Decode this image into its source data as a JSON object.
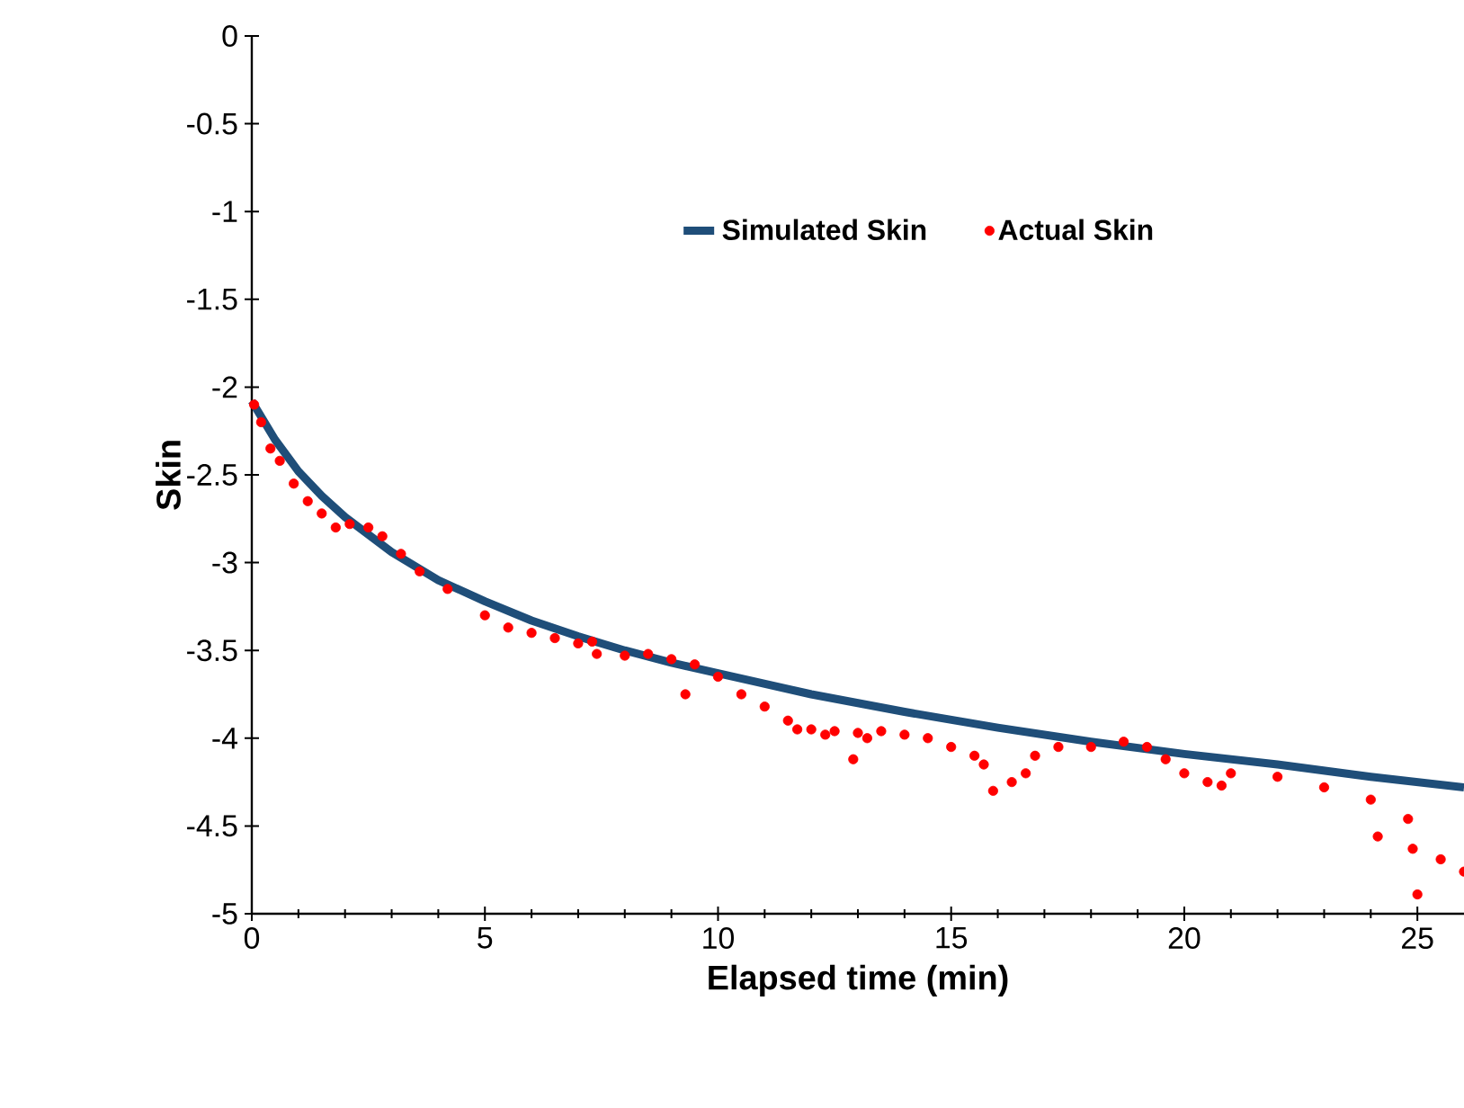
{
  "chart_data": {
    "type": "line",
    "xlabel": "Elapsed time (min)",
    "ylabel": "Skin",
    "xlim": [
      0,
      26
    ],
    "ylim": [
      -5,
      0
    ],
    "xticks": [
      0,
      5,
      10,
      15,
      20,
      25
    ],
    "yticks": [
      -5,
      -4.5,
      -4,
      -3.5,
      -3,
      -2.5,
      -2,
      -1.5,
      -1,
      -0.5,
      0
    ],
    "legend": "top",
    "grid": false,
    "series": [
      {
        "name": "Simulated Skin",
        "color": "#1f4e79",
        "marker": "none",
        "x": [
          0,
          0.5,
          1,
          1.5,
          2,
          3,
          4,
          5,
          6,
          7,
          8,
          9,
          10,
          12,
          14,
          16,
          18,
          20,
          22,
          24,
          26
        ],
        "values": [
          -2.08,
          -2.3,
          -2.48,
          -2.62,
          -2.74,
          -2.94,
          -3.1,
          -3.22,
          -3.33,
          -3.42,
          -3.5,
          -3.57,
          -3.63,
          -3.75,
          -3.85,
          -3.94,
          -4.02,
          -4.09,
          -4.15,
          -4.22,
          -4.28
        ]
      },
      {
        "name": "Actual Skin",
        "type": "scatter",
        "color": "#ff0000",
        "marker": "circle",
        "x": [
          0.05,
          0.2,
          0.4,
          0.6,
          0.9,
          1.2,
          1.5,
          1.8,
          2.1,
          2.5,
          2.8,
          3.2,
          3.6,
          4.2,
          5,
          5.5,
          6,
          6.5,
          7,
          7.3,
          7.4,
          8,
          8.5,
          9,
          9.3,
          9.5,
          10,
          10.5,
          11,
          11.5,
          11.7,
          12,
          12.3,
          12.5,
          12.9,
          13,
          13.2,
          13.5,
          14,
          14.5,
          15,
          15.5,
          15.7,
          15.9,
          16.3,
          16.6,
          16.8,
          17.3,
          18,
          18.7,
          19.2,
          19.6,
          20,
          20.5,
          20.8,
          21,
          22,
          23,
          24,
          24.15,
          24.8,
          24.9,
          25,
          25.5,
          26
        ],
        "values": [
          -2.1,
          -2.2,
          -2.35,
          -2.42,
          -2.55,
          -2.65,
          -2.72,
          -2.8,
          -2.78,
          -2.8,
          -2.85,
          -2.95,
          -3.05,
          -3.15,
          -3.3,
          -3.37,
          -3.4,
          -3.43,
          -3.46,
          -3.45,
          -3.52,
          -3.53,
          -3.52,
          -3.55,
          -3.75,
          -3.58,
          -3.65,
          -3.75,
          -3.82,
          -3.9,
          -3.95,
          -3.95,
          -3.98,
          -3.96,
          -4.12,
          -3.97,
          -4,
          -3.96,
          -3.98,
          -4,
          -4.05,
          -4.1,
          -4.15,
          -4.3,
          -4.25,
          -4.2,
          -4.1,
          -4.05,
          -4.05,
          -4.02,
          -4.05,
          -4.12,
          -4.2,
          -4.25,
          -4.27,
          -4.2,
          -4.22,
          -4.28,
          -4.35,
          -4.56,
          -4.46,
          -4.63,
          -4.89,
          -4.69,
          -4.76
        ]
      }
    ]
  }
}
